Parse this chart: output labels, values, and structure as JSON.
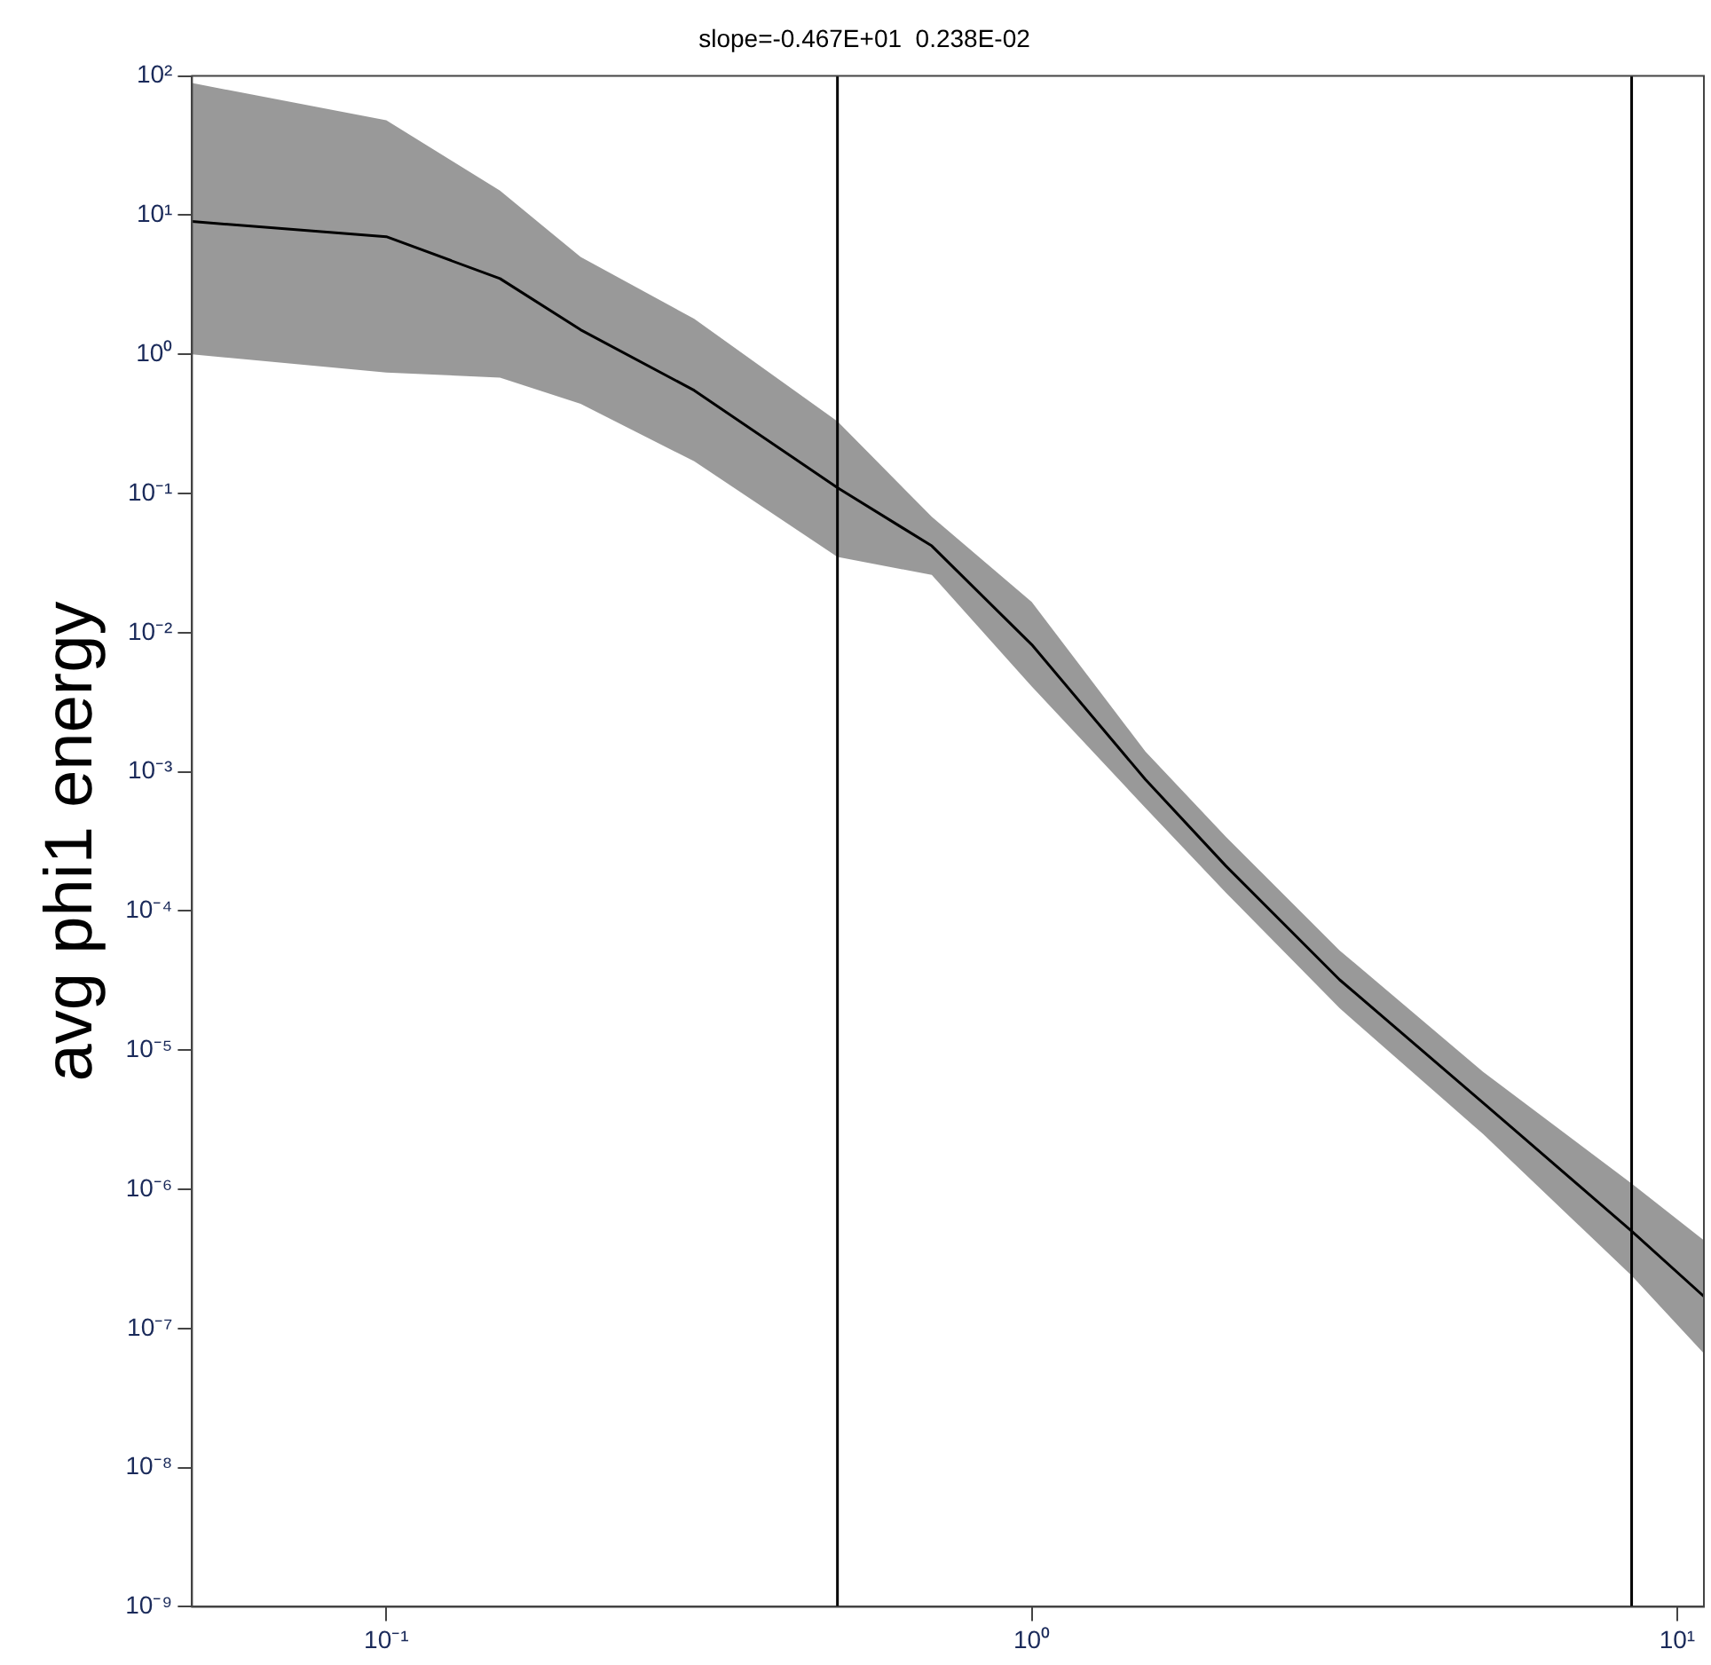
{
  "chart_data": {
    "type": "line",
    "title": "slope=-0.467E+01  0.238E-02",
    "ylabel": "avg phi1 energy",
    "log": "xy",
    "grid": false,
    "x": [
      0.05,
      0.1,
      0.15,
      0.2,
      0.3,
      0.5,
      0.7,
      1,
      1.5,
      2,
      3,
      5,
      8.5,
      11
    ],
    "series": [
      {
        "color": "#000000",
        "values": [
          9,
          7,
          3.5,
          1.5,
          0.55,
          0.11,
          0.042,
          0.0082,
          0.00088,
          0.00021,
          3.2e-05,
          4.2e-06,
          5e-07,
          1.7e-07
        ],
        "lower": [
          1.0,
          0.74,
          0.68,
          0.44,
          0.17,
          0.035,
          0.026,
          0.0041,
          0.00055,
          0.000135,
          2e-05,
          2.5e-06,
          2.4e-07,
          6.6e-08
        ],
        "upper": [
          89,
          48,
          15,
          5,
          1.8,
          0.33,
          0.068,
          0.0166,
          0.0014,
          0.00034,
          5.2e-05,
          7e-06,
          1.1e-06,
          4.3e-07
        ]
      }
    ],
    "xlim": [
      0.05,
      11
    ],
    "ylim": [
      1e-09,
      100
    ],
    "xticks": [
      {
        "value": 0.1,
        "label": "10⁻¹"
      },
      {
        "value": 1,
        "label": "10⁰"
      },
      {
        "value": 10,
        "label": "10¹"
      }
    ],
    "yticks": [
      {
        "value": 1e-09,
        "label": "10⁻⁹"
      },
      {
        "value": 1e-08,
        "label": "10⁻⁸"
      },
      {
        "value": 1e-07,
        "label": "10⁻⁷"
      },
      {
        "value": 1e-06,
        "label": "10⁻⁶"
      },
      {
        "value": 1e-05,
        "label": "10⁻⁵"
      },
      {
        "value": 0.0001,
        "label": "10⁻⁴"
      },
      {
        "value": 0.001,
        "label": "10⁻³"
      },
      {
        "value": 0.01,
        "label": "10⁻²"
      },
      {
        "value": 0.1,
        "label": "10⁻¹"
      },
      {
        "value": 1,
        "label": "10⁰"
      },
      {
        "value": 10,
        "label": "10¹"
      },
      {
        "value": 100,
        "label": "10²"
      }
    ],
    "ref_lines": [
      {
        "axis": "x",
        "value": 0.5,
        "color": "#000000"
      },
      {
        "axis": "x",
        "value": 8.5,
        "color": "#000000"
      }
    ]
  }
}
